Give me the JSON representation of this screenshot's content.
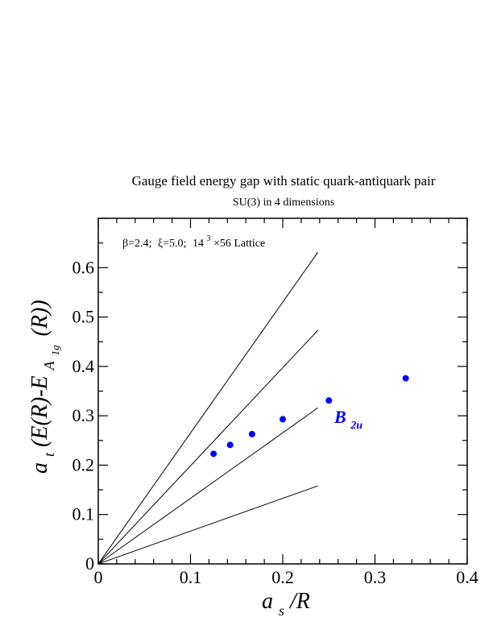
{
  "chart_data": {
    "type": "scatter",
    "title": "Gauge field energy gap with static quark-antiquark pair",
    "subtitle": "SU(3) in 4 dimensions",
    "annotation": {
      "beta": "β=2.4;",
      "xi": "ξ=5.0;",
      "lattice_base": "14",
      "lattice_exp": "3",
      "lattice_rest": "×56 Lattice"
    },
    "xlabel": {
      "main": "a",
      "sub": "s",
      "rest": "/R"
    },
    "ylabel": {
      "part1": "a",
      "sub1": "t",
      "part2": "(E(R)-E",
      "sub2": "A",
      "sub3": "1g",
      "part3": "(R))"
    },
    "xlim": [
      0,
      0.4
    ],
    "ylim": [
      0,
      0.7
    ],
    "x_ticks": [
      "0",
      "0.1",
      "0.2",
      "0.3",
      "0.4"
    ],
    "y_ticks": [
      "0",
      "0.1",
      "0.2",
      "0.3",
      "0.4",
      "0.5",
      "0.6"
    ],
    "x_tick_values": [
      0,
      0.1,
      0.2,
      0.3,
      0.4
    ],
    "y_tick_values": [
      0,
      0.1,
      0.2,
      0.3,
      0.4,
      0.5,
      0.6
    ],
    "series": [
      {
        "name": "B2u",
        "label_main": "B",
        "label_sub": "2u",
        "color": "#0000ff",
        "points": [
          {
            "x": 0.125,
            "y": 0.223
          },
          {
            "x": 0.1429,
            "y": 0.241
          },
          {
            "x": 0.1667,
            "y": 0.263
          },
          {
            "x": 0.2,
            "y": 0.293
          },
          {
            "x": 0.25,
            "y": 0.331
          },
          {
            "x": 0.3333,
            "y": 0.376
          }
        ]
      }
    ],
    "reference_lines": [
      {
        "x0": 0,
        "y0": 0,
        "x1": 0.238,
        "y1": 0.158
      },
      {
        "x0": 0,
        "y0": 0,
        "x1": 0.238,
        "y1": 0.316
      },
      {
        "x0": 0,
        "y0": 0,
        "x1": 0.238,
        "y1": 0.473
      },
      {
        "x0": 0,
        "y0": 0,
        "x1": 0.238,
        "y1": 0.631
      }
    ],
    "grid": false
  }
}
